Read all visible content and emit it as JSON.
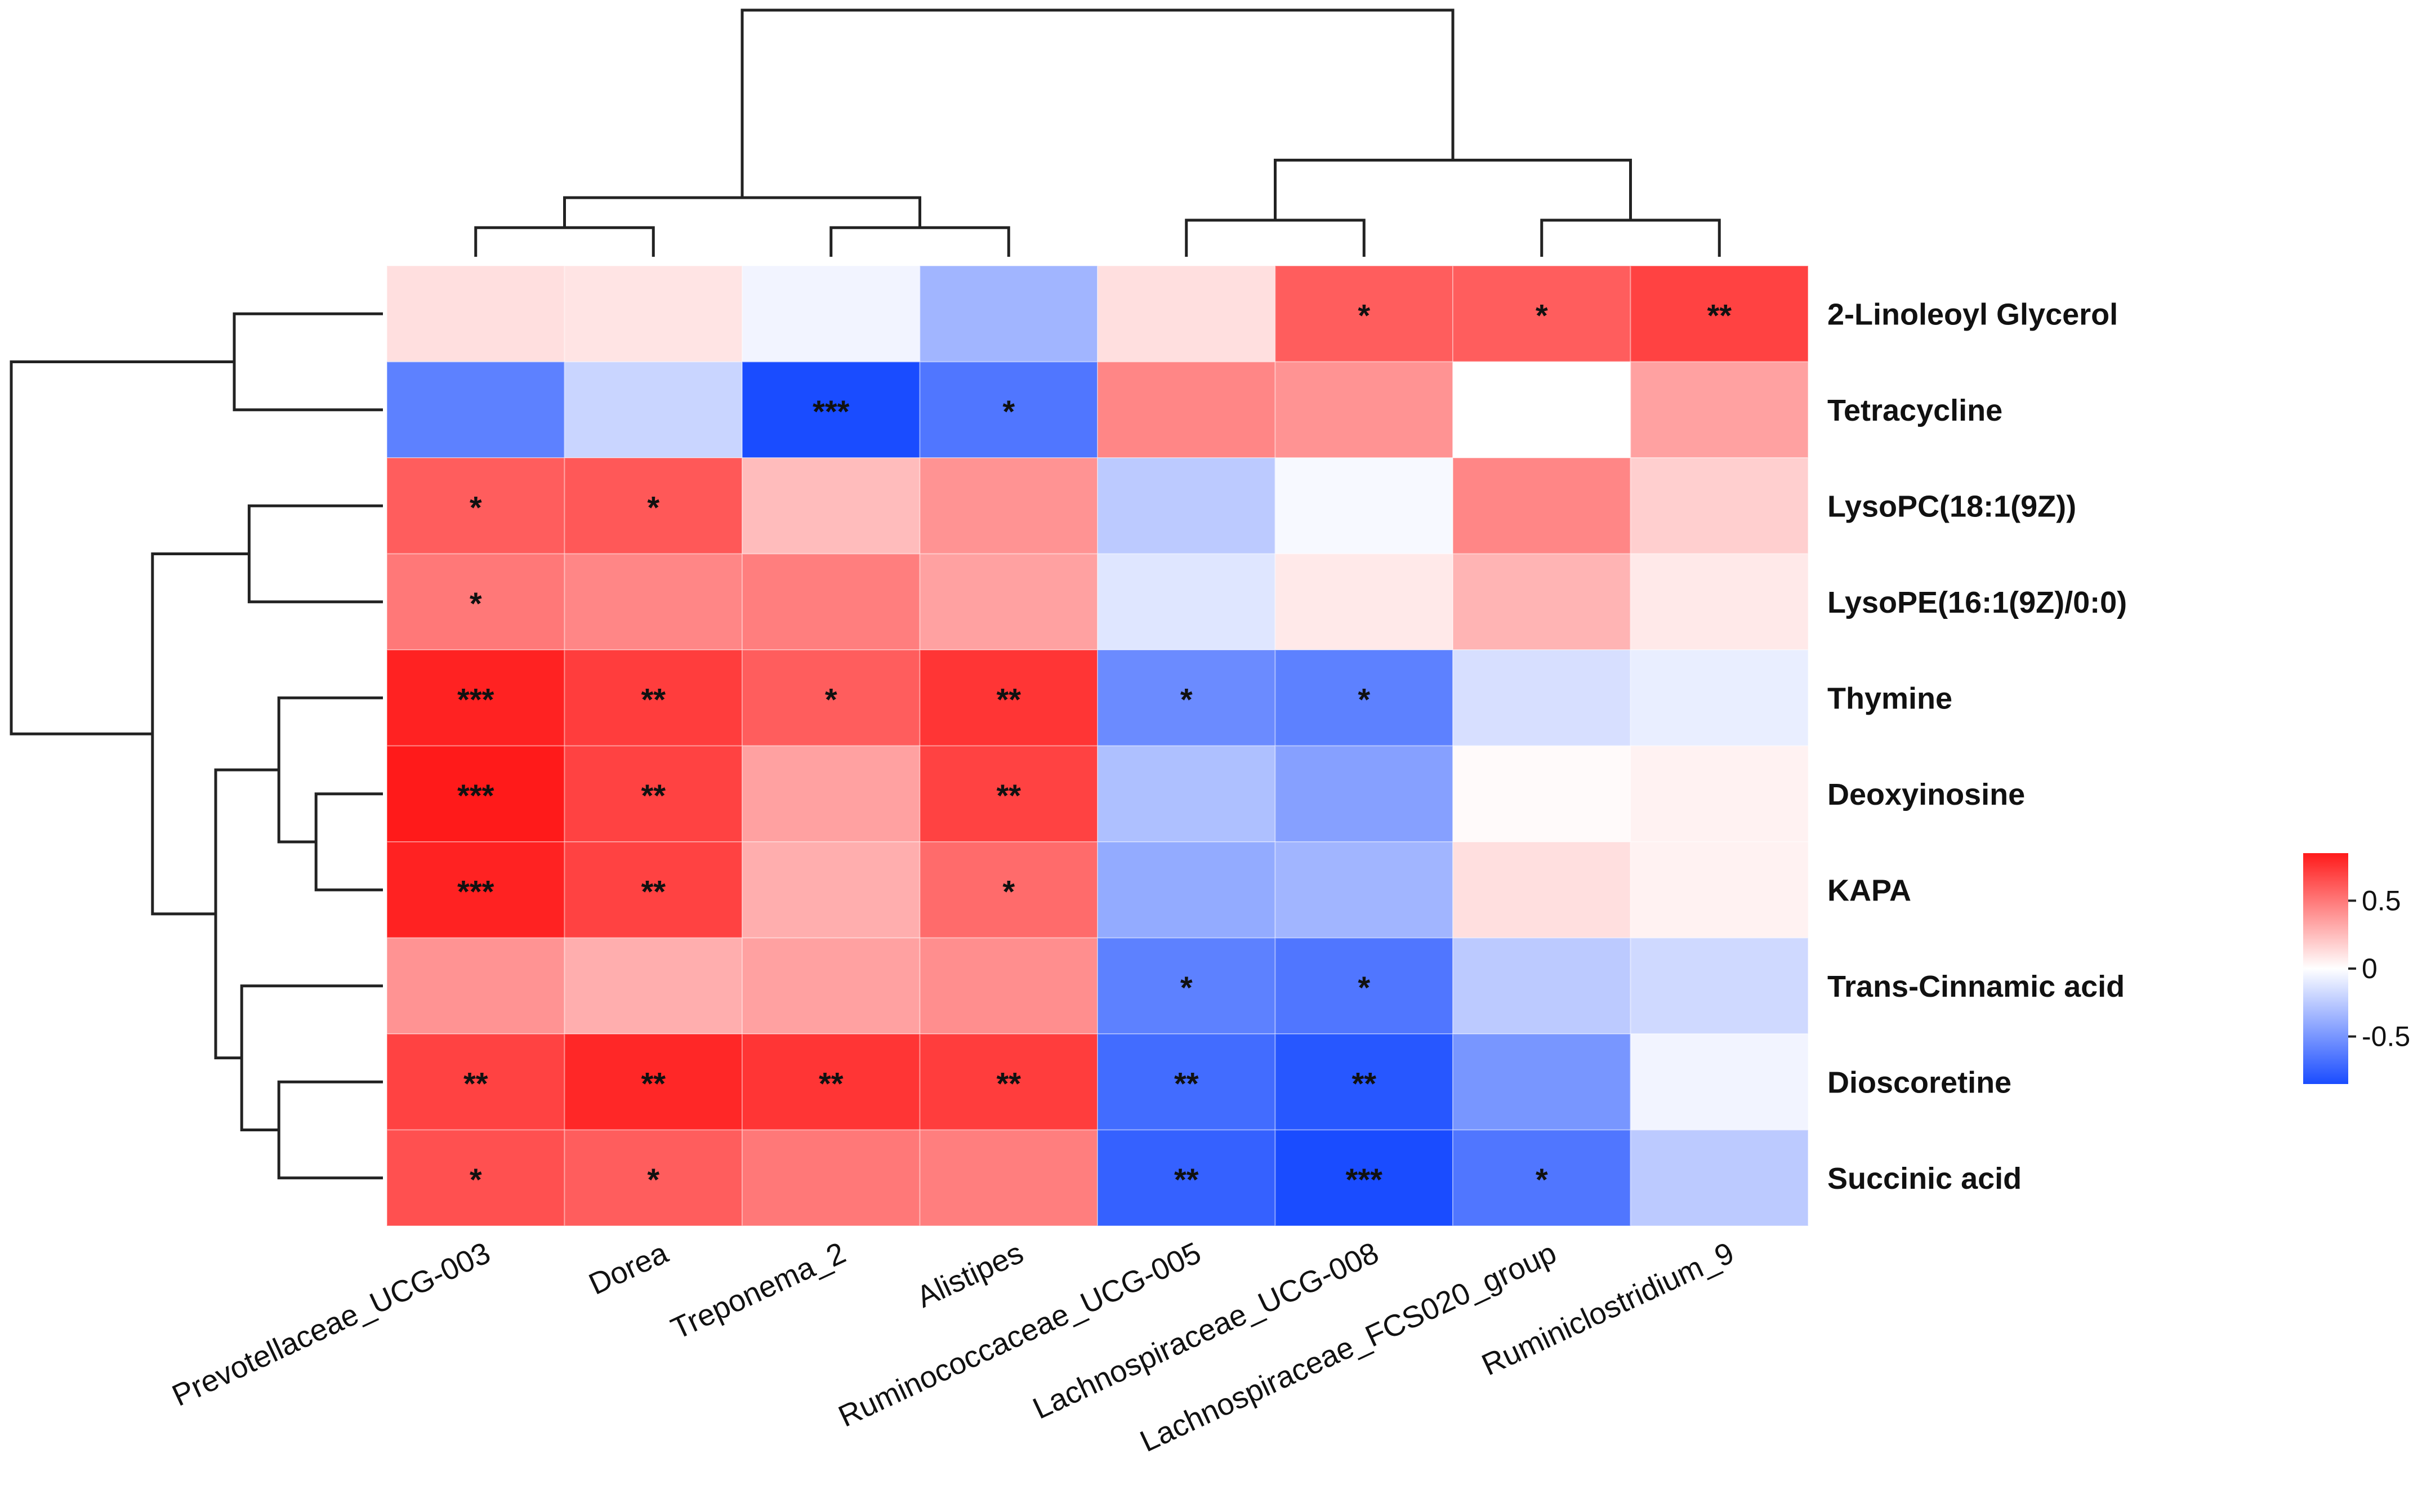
{
  "chart_data": {
    "type": "heatmap",
    "title": "",
    "columns": [
      "Prevotellaceae_UCG-003",
      "Dorea",
      "Treponema_2",
      "Alistipes",
      "Ruminococcaceae_UCG-005",
      "Lachnospiraceae_UCG-008",
      "Lachnospiraceae_FCS020_group",
      "Ruminiclostridium_9"
    ],
    "rows": [
      "2-Linoleoyl Glycerol",
      "Tetracycline",
      "LysoPC(18:1(9Z))",
      "LysoPE(16:1(9Z)/0:0)",
      "Thymine",
      "Deoxyinosine",
      "KAPA",
      "Trans-Cinnamic acid",
      "Dioscoretine",
      "Succinic acid"
    ],
    "values": [
      [
        0.12,
        0.1,
        -0.05,
        -0.35,
        0.12,
        0.6,
        0.6,
        0.7
      ],
      [
        -0.6,
        -0.2,
        -0.85,
        -0.65,
        0.45,
        0.4,
        0.0,
        0.35
      ],
      [
        0.6,
        0.62,
        0.25,
        0.4,
        -0.25,
        -0.03,
        0.45,
        0.18
      ],
      [
        0.5,
        0.45,
        0.48,
        0.35,
        -0.12,
        0.08,
        0.28,
        0.08
      ],
      [
        0.82,
        0.72,
        0.6,
        0.75,
        -0.55,
        -0.6,
        -0.15,
        -0.08
      ],
      [
        0.85,
        0.7,
        0.35,
        0.7,
        -0.3,
        -0.45,
        0.02,
        0.05
      ],
      [
        0.82,
        0.7,
        0.3,
        0.55,
        -0.4,
        -0.35,
        0.12,
        0.05
      ],
      [
        0.4,
        0.3,
        0.35,
        0.42,
        -0.6,
        -0.65,
        -0.25,
        -0.18
      ],
      [
        0.7,
        0.8,
        0.75,
        0.72,
        -0.7,
        -0.8,
        -0.5,
        -0.05
      ],
      [
        0.65,
        0.6,
        0.5,
        0.48,
        -0.75,
        -0.9,
        -0.65,
        -0.25
      ]
    ],
    "significance": [
      [
        "",
        "",
        "",
        "",
        "",
        "*",
        "*",
        "**"
      ],
      [
        "",
        "",
        "***",
        "*",
        "",
        "",
        "",
        ""
      ],
      [
        "*",
        "*",
        "",
        "",
        "",
        "",
        "",
        ""
      ],
      [
        "*",
        "",
        "",
        "",
        "",
        "",
        "",
        ""
      ],
      [
        "***",
        "**",
        "*",
        "**",
        "*",
        "*",
        "",
        ""
      ],
      [
        "***",
        "**",
        "",
        "**",
        "",
        "",
        "",
        ""
      ],
      [
        "***",
        "**",
        "",
        "*",
        "",
        "",
        "",
        ""
      ],
      [
        "",
        "",
        "",
        "",
        "*",
        "*",
        "",
        ""
      ],
      [
        "**",
        "**",
        "**",
        "**",
        "**",
        "**",
        "",
        ""
      ],
      [
        "*",
        "*",
        "",
        "",
        "**",
        "***",
        "*",
        ""
      ]
    ],
    "color_scale": {
      "min": -0.85,
      "max": 0.85,
      "low_color": "#1a4cff",
      "mid_color": "#ffffff",
      "high_color": "#ff1a1a",
      "ticks": [
        0.5,
        0,
        -0.5
      ],
      "tick_labels": [
        "0.5",
        "0",
        "-0.5"
      ]
    },
    "column_dendrogram": [
      [
        0,
        1,
        0.13
      ],
      [
        2,
        3,
        0.13
      ],
      [
        4,
        5,
        0.16
      ],
      [
        6,
        7,
        0.16
      ],
      [
        8,
        9,
        0.25
      ],
      [
        10,
        11,
        0.4
      ],
      [
        12,
        13,
        1.0
      ]
    ],
    "row_dendrogram": [
      [
        0,
        1,
        0.4
      ],
      [
        2,
        3,
        0.36
      ],
      [
        5,
        6,
        0.18
      ],
      [
        4,
        12,
        0.28
      ],
      [
        8,
        9,
        0.28
      ],
      [
        7,
        14,
        0.38
      ],
      [
        13,
        15,
        0.45
      ],
      [
        11,
        16,
        0.62
      ],
      [
        10,
        17,
        1.0
      ]
    ]
  }
}
